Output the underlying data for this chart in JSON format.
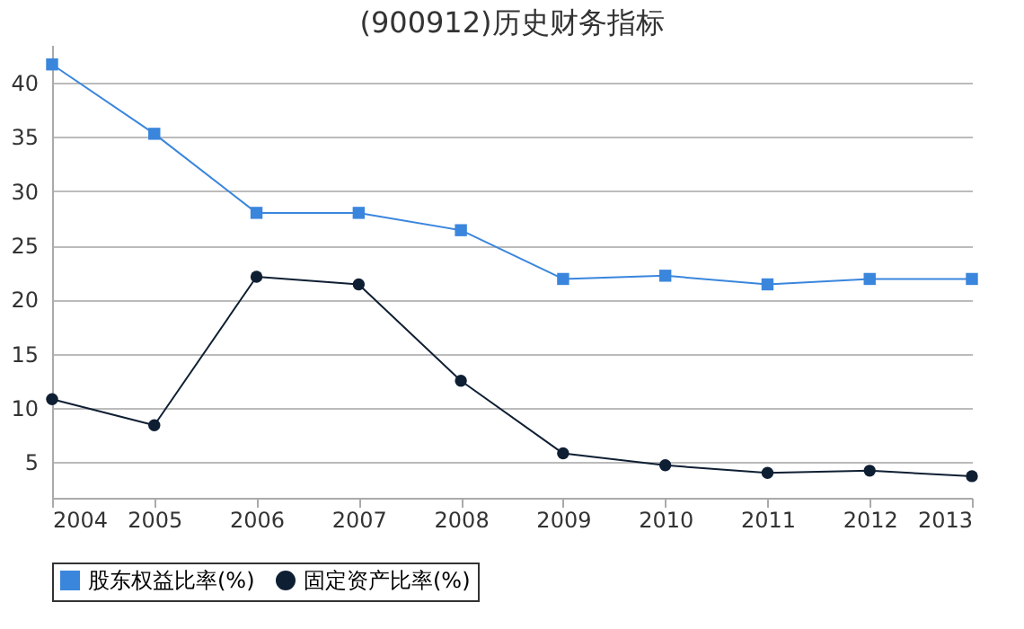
{
  "chart_data": {
    "type": "line",
    "title": "(900912)历史财务指标",
    "categories": [
      "2004",
      "2005",
      "2006",
      "2007",
      "2008",
      "2009",
      "2010",
      "2011",
      "2012",
      "2013"
    ],
    "series": [
      {
        "name": "股东权益比率(%)",
        "color": "#3a86dd",
        "marker": "square",
        "values": [
          41.7,
          35.3,
          28.0,
          28.0,
          26.4,
          21.9,
          22.2,
          21.4,
          21.9,
          21.9
        ]
      },
      {
        "name": "固定资产比率(%)",
        "color": "#0f1f33",
        "marker": "circle",
        "values": [
          10.8,
          8.4,
          22.1,
          21.4,
          12.5,
          5.8,
          4.7,
          4.0,
          4.2,
          3.7
        ]
      }
    ],
    "ylim": [
      1.7,
      43.5
    ],
    "yticks": [
      5,
      10,
      15,
      20,
      25,
      30,
      35,
      40
    ],
    "grid": "y",
    "legend": "bottom"
  }
}
